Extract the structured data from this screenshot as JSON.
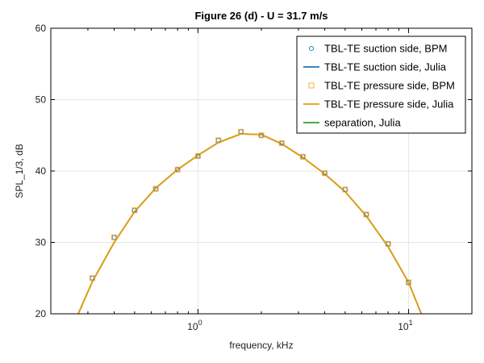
{
  "chart_data": {
    "type": "line",
    "title": "Figure 26 (d) - U = 31.7 m/s",
    "xlabel": "frequency, kHz",
    "ylabel": "SPL_1/3, dB",
    "xscale": "log",
    "xlim": [
      0.2,
      20
    ],
    "ylim": [
      20,
      60
    ],
    "yticks": [
      20,
      30,
      40,
      50,
      60
    ],
    "xticks": [
      {
        "value": 1,
        "base": "10",
        "exp": "0"
      },
      {
        "value": 10,
        "base": "10",
        "exp": "1"
      }
    ],
    "grid": true,
    "legend_position": "top-right",
    "series": [
      {
        "name": "TBL-TE suction side, BPM",
        "kind": "marker-circle",
        "color": "#1f77b4",
        "x": [
          0.315,
          0.4,
          0.5,
          0.63,
          0.8,
          1.0,
          1.25,
          1.6,
          2.0,
          2.5,
          3.15,
          4.0,
          5.0,
          6.3,
          8.0,
          10.0
        ],
        "y": [
          25.0,
          30.7,
          34.5,
          37.5,
          40.2,
          42.1,
          44.3,
          45.5,
          45.0,
          43.9,
          42.0,
          39.7,
          37.4,
          33.9,
          29.8,
          24.4
        ]
      },
      {
        "name": "TBL-TE suction side, Julia",
        "kind": "line",
        "color": "#1f77b4",
        "x": [
          0.27,
          0.315,
          0.4,
          0.5,
          0.63,
          0.8,
          1.0,
          1.25,
          1.6,
          2.0,
          2.5,
          3.15,
          4.0,
          5.0,
          6.3,
          8.0,
          10.0,
          11.5
        ],
        "y": [
          20.0,
          24.5,
          30.0,
          34.3,
          37.6,
          40.2,
          42.2,
          44.0,
          45.2,
          45.1,
          43.8,
          41.9,
          39.6,
          37.1,
          33.7,
          29.4,
          24.4,
          20.0
        ]
      },
      {
        "name": "TBL-TE pressure side, BPM",
        "kind": "marker-square",
        "color": "#ff9f1c",
        "x": [
          0.315,
          0.4,
          0.5,
          0.63,
          0.8,
          1.0,
          1.25,
          1.6,
          2.0,
          2.5,
          3.15,
          4.0,
          5.0,
          6.3,
          8.0,
          10.0
        ],
        "y": [
          25.0,
          30.7,
          34.5,
          37.5,
          40.2,
          42.1,
          44.3,
          45.5,
          45.0,
          43.9,
          42.0,
          39.7,
          37.4,
          33.9,
          29.8,
          24.4
        ]
      },
      {
        "name": "TBL-TE pressure side, Julia",
        "kind": "line",
        "color": "#e69f00",
        "x": [
          0.27,
          0.315,
          0.4,
          0.5,
          0.63,
          0.8,
          1.0,
          1.25,
          1.6,
          2.0,
          2.5,
          3.15,
          4.0,
          5.0,
          6.3,
          8.0,
          10.0,
          11.5
        ],
        "y": [
          20.0,
          24.5,
          30.0,
          34.3,
          37.6,
          40.2,
          42.2,
          44.0,
          45.2,
          45.1,
          43.8,
          41.9,
          39.6,
          37.1,
          33.7,
          29.4,
          24.4,
          20.0
        ]
      },
      {
        "name": "separation, Julia",
        "kind": "line",
        "color": "#2ca02c",
        "x": [],
        "y": []
      }
    ]
  }
}
